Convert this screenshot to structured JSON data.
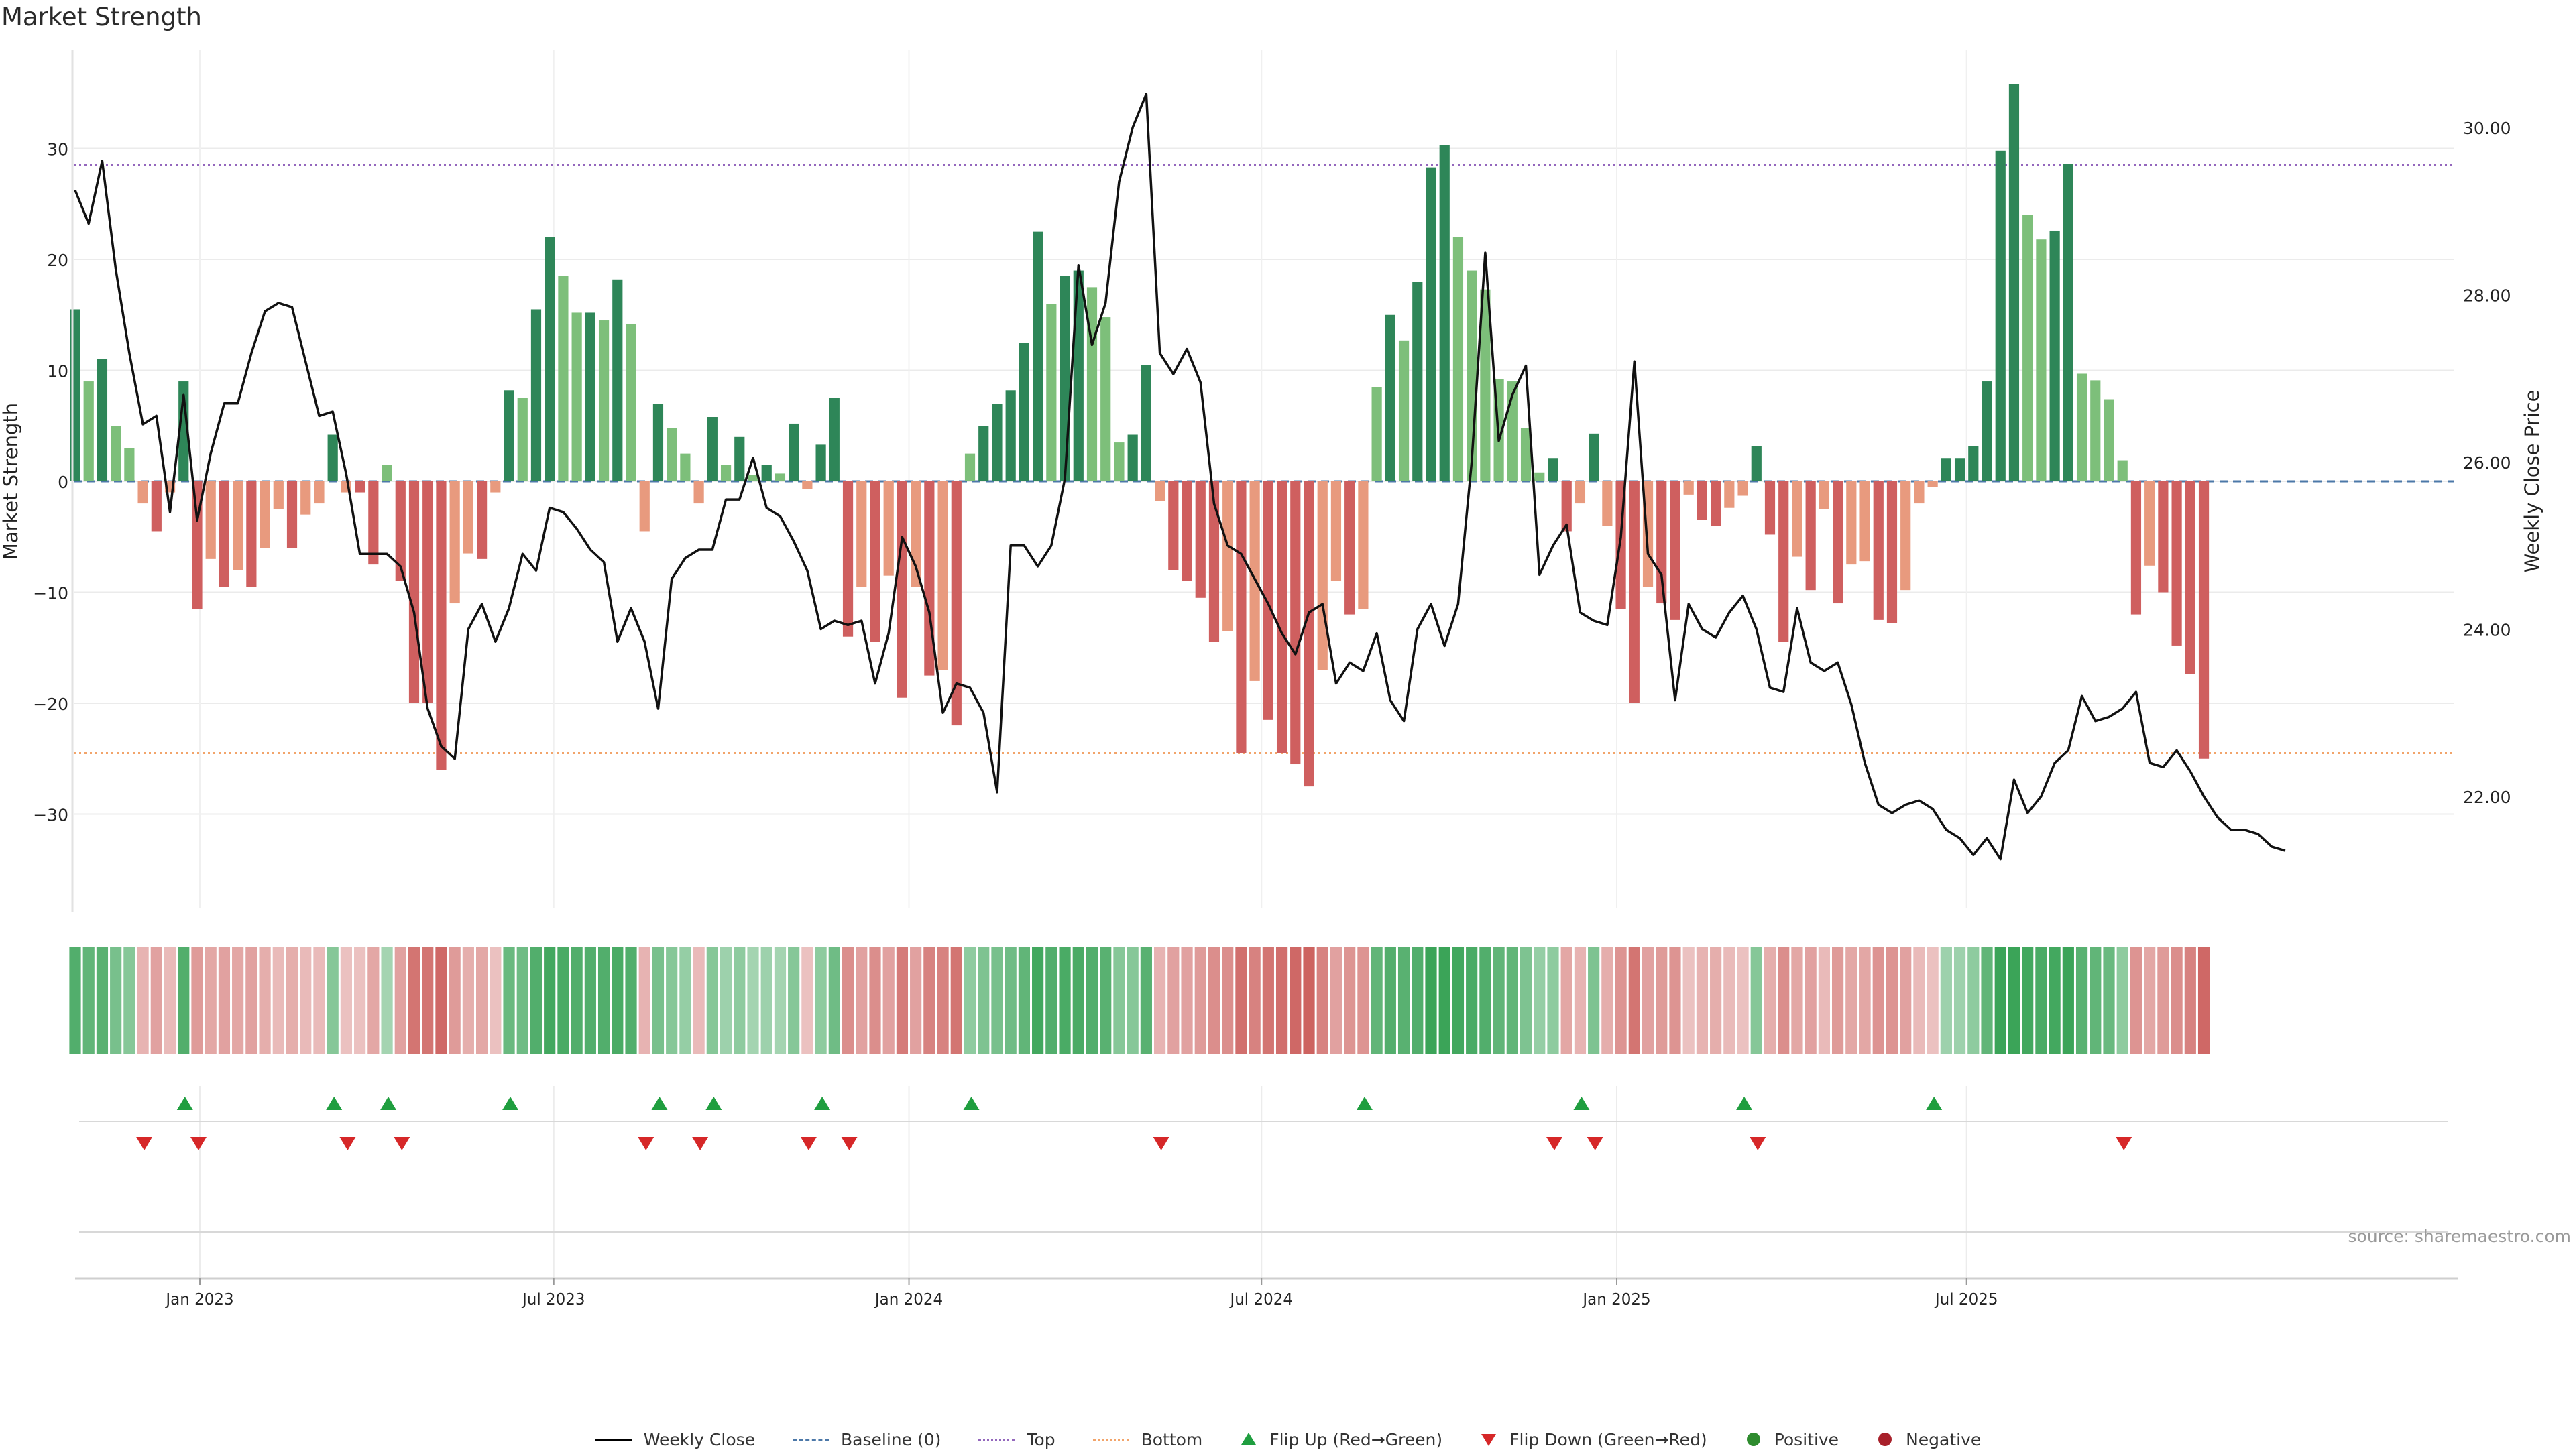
{
  "chart_data": {
    "type": "bar",
    "title": "Market Strength",
    "ylabel": "Market Strength",
    "y2label": "Weekly Close Price",
    "ylim": [
      -38,
      38
    ],
    "y2lim": [
      21.0,
      31.2
    ],
    "yticks": [
      -30,
      -20,
      -10,
      0,
      10,
      20,
      30
    ],
    "ytick_labels": [
      "−30",
      "−20",
      "−10",
      "0",
      "10",
      "20",
      "30"
    ],
    "y2ticks": [
      22,
      24,
      26,
      28,
      30
    ],
    "y2tick_labels": [
      "22.00",
      "24.00",
      "26.00",
      "28.00",
      "30.00"
    ],
    "xtick_labels": [
      "Jan 2023",
      "Jul 2023",
      "Jan 2024",
      "Jul 2024",
      "Jan 2025",
      "Jul 2025"
    ],
    "xtick_weeks": [
      9.2,
      35.3,
      61.5,
      87.5,
      113.7,
      139.5
    ],
    "top_line": 28.5,
    "bottom_line": -24.5,
    "baseline": 0,
    "source": "source: sharemaestro.com",
    "strength": [
      15.5,
      9,
      11,
      5,
      3,
      -2,
      -4.5,
      -1,
      9,
      -11.5,
      -7,
      -9.5,
      -8,
      -9.5,
      -6,
      -2.5,
      -6,
      -3,
      -2,
      4.2,
      -1,
      -1,
      -7.5,
      1.5,
      -9,
      -20,
      -20,
      -26,
      -11,
      -6.5,
      -7,
      -1,
      8.2,
      7.5,
      15.5,
      22,
      18.5,
      15.2,
      15.2,
      14.5,
      18.2,
      14.2,
      -4.5,
      7,
      4.8,
      2.5,
      -2,
      5.8,
      1.5,
      4,
      0.6,
      1.5,
      0.7,
      5.2,
      -0.7,
      3.3,
      7.5,
      -14,
      -9.5,
      -14.5,
      -8.5,
      -19.5,
      -9.5,
      -17.5,
      -17,
      -22,
      2.5,
      5,
      7,
      8.2,
      12.5,
      22.5,
      16,
      18.5,
      19,
      17.5,
      14.8,
      3.5,
      4.2,
      10.5,
      -1.8,
      -8,
      -9,
      -10.5,
      -14.5,
      -13.5,
      -24.5,
      -18,
      -21.5,
      -24.5,
      -25.5,
      -27.5,
      -17,
      -9,
      -12,
      -11.5,
      8.5,
      15,
      12.7,
      18,
      28.3,
      30.3,
      22,
      19,
      17.3,
      9.2,
      9,
      4.8,
      0.8,
      2.1,
      -4.5,
      -2,
      4.3,
      -4,
      -11.5,
      -20,
      -9.5,
      -11,
      -12.5,
      -1.2,
      -3.5,
      -4,
      -2.4,
      -1.3,
      3.2,
      -4.8,
      -14.5,
      -6.8,
      -9.8,
      -2.5,
      -11,
      -7.5,
      -7.2,
      -12.5,
      -12.8,
      -9.8,
      -2,
      -0.5,
      2.1,
      2.1,
      3.2,
      9,
      29.8,
      35.8,
      24,
      21.8,
      22.6,
      28.6,
      9.7,
      9.1,
      7.4,
      1.9,
      -12,
      -7.6,
      -10,
      -14.8,
      -17.4,
      -25
    ],
    "close": [
      29.25,
      28.85,
      29.6,
      28.3,
      27.3,
      26.45,
      26.55,
      25.4,
      26.8,
      25.3,
      26.1,
      26.7,
      26.7,
      27.3,
      27.8,
      27.9,
      27.85,
      27.2,
      26.55,
      26.6,
      25.85,
      24.9,
      24.9,
      24.9,
      24.75,
      24.2,
      23.05,
      22.6,
      22.45,
      24.0,
      24.3,
      23.85,
      24.25,
      24.9,
      24.7,
      25.45,
      25.4,
      25.2,
      24.95,
      24.8,
      23.85,
      24.25,
      23.85,
      23.05,
      24.6,
      24.85,
      24.95,
      24.95,
      25.55,
      25.55,
      26.05,
      25.45,
      25.35,
      25.05,
      24.7,
      24.0,
      24.1,
      24.05,
      24.1,
      23.35,
      23.95,
      25.1,
      24.75,
      24.2,
      23.0,
      23.35,
      23.3,
      23.0,
      22.05,
      25.0,
      25.0,
      24.75,
      25.0,
      25.8,
      28.35,
      27.4,
      27.9,
      29.35,
      30.0,
      30.4,
      27.3,
      27.05,
      27.35,
      26.95,
      25.5,
      25.0,
      24.9,
      24.6,
      24.3,
      23.95,
      23.7,
      24.2,
      24.3,
      23.35,
      23.6,
      23.5,
      23.95,
      23.15,
      22.9,
      24.0,
      24.3,
      23.8,
      24.3,
      26.0,
      28.5,
      26.25,
      26.8,
      27.15,
      24.65,
      25.0,
      25.25,
      24.2,
      24.1,
      24.05,
      25.1,
      27.2,
      24.9,
      24.65,
      23.15,
      24.3,
      24.0,
      23.9,
      24.2,
      24.4,
      24.0,
      23.3,
      23.25,
      24.25,
      23.6,
      23.5,
      23.6,
      23.1,
      22.4,
      21.9,
      21.8,
      21.9,
      21.95,
      21.85,
      21.6,
      21.5,
      21.3,
      21.5,
      21.25,
      22.2,
      21.8,
      22.0,
      22.4,
      22.55,
      23.2,
      22.9,
      22.95,
      23.05,
      23.25,
      22.4,
      22.35,
      22.55,
      22.3,
      22.0,
      21.75,
      21.6,
      21.6,
      21.55,
      21.4,
      21.35
    ],
    "heat_opacity": [
      0.85,
      0.75,
      0.8,
      0.6,
      0.5,
      0.3,
      0.45,
      0.25,
      0.85,
      0.5,
      0.4,
      0.45,
      0.4,
      0.45,
      0.35,
      0.25,
      0.35,
      0.25,
      0.25,
      0.5,
      0.2,
      0.2,
      0.4,
      0.3,
      0.45,
      0.8,
      0.8,
      0.9,
      0.5,
      0.35,
      0.4,
      0.2,
      0.7,
      0.65,
      0.85,
      0.95,
      0.9,
      0.85,
      0.85,
      0.85,
      0.9,
      0.85,
      0.3,
      0.6,
      0.5,
      0.4,
      0.25,
      0.5,
      0.35,
      0.45,
      0.3,
      0.35,
      0.3,
      0.5,
      0.2,
      0.45,
      0.65,
      0.6,
      0.45,
      0.6,
      0.45,
      0.75,
      0.45,
      0.7,
      0.7,
      0.8,
      0.45,
      0.55,
      0.6,
      0.65,
      0.75,
      0.95,
      0.85,
      0.9,
      0.9,
      0.85,
      0.8,
      0.5,
      0.5,
      0.8,
      0.3,
      0.45,
      0.45,
      0.5,
      0.6,
      0.6,
      0.85,
      0.7,
      0.8,
      0.85,
      0.9,
      0.95,
      0.7,
      0.45,
      0.55,
      0.55,
      0.75,
      0.85,
      0.8,
      0.85,
      1.0,
      1.0,
      0.95,
      0.9,
      0.85,
      0.75,
      0.75,
      0.55,
      0.4,
      0.45,
      0.4,
      0.3,
      0.55,
      0.35,
      0.55,
      0.8,
      0.45,
      0.5,
      0.55,
      0.2,
      0.3,
      0.35,
      0.25,
      0.2,
      0.5,
      0.35,
      0.6,
      0.4,
      0.45,
      0.25,
      0.5,
      0.4,
      0.4,
      0.55,
      0.55,
      0.45,
      0.25,
      0.2,
      0.35,
      0.35,
      0.45,
      0.75,
      1.0,
      1.0,
      0.95,
      0.9,
      0.95,
      1.0,
      0.8,
      0.75,
      0.7,
      0.45,
      0.55,
      0.4,
      0.5,
      0.6,
      0.7,
      0.9
    ],
    "flip_up_weeks": [
      8.1,
      19.1,
      23.1,
      32.1,
      43.1,
      47.1,
      55.1,
      66.1,
      95.1,
      111.1,
      123.1,
      137.1
    ],
    "flip_down_weeks": [
      5.1,
      9.1,
      20.1,
      24.1,
      42.1,
      46.1,
      54.1,
      57.1,
      80.1,
      109.1,
      112.1,
      124.1,
      151.1
    ]
  },
  "legend": {
    "weekly_close": "Weekly Close",
    "baseline": "Baseline (0)",
    "top": "Top",
    "bottom": "Bottom",
    "flip_up": "Flip Up (Red→Green)",
    "flip_down": "Flip Down (Green→Red)",
    "positive": "Positive",
    "negative": "Negative"
  },
  "colors": {
    "green_strong": "#2e8658",
    "green_light": "#7dbf7a",
    "red_strong": "#cf5f5f",
    "red_light": "#e89a7e",
    "heat_green": "#2f9e4e",
    "heat_red": "#c8524f",
    "line": "#111111",
    "baseline": "#4c78a8",
    "top": "#9467bd",
    "bottom": "#f2a46a",
    "flip_up": "#1f9e3f",
    "flip_down": "#d62728"
  }
}
